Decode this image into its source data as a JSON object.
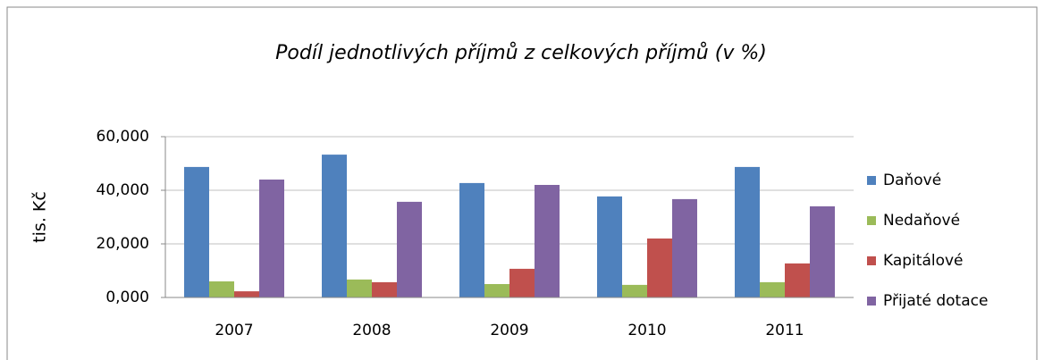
{
  "chart_data": {
    "type": "bar",
    "title": "Podíl jednotlivých příjmů z celkových příjmů (v %)",
    "y_label": "tis. Kč",
    "categories": [
      "2007",
      "2008",
      "2009",
      "2010",
      "2011"
    ],
    "series": [
      {
        "name": "Daňové",
        "color": "#4f81bd",
        "values": [
          48.7,
          53.3,
          42.7,
          37.7,
          48.7
        ]
      },
      {
        "name": "Nedaňové",
        "color": "#9bbb59",
        "values": [
          6,
          6.7,
          5,
          4.7,
          5.7
        ]
      },
      {
        "name": "Kapitálové",
        "color": "#c0504d",
        "values": [
          2.3,
          5.7,
          10.7,
          22,
          12.7
        ]
      },
      {
        "name": "Přijaté dotace",
        "color": "#8064a2",
        "values": [
          44,
          35.7,
          42,
          36.7,
          34
        ]
      }
    ],
    "ylim": [
      0,
      60
    ],
    "yticks": [
      {
        "value": 0,
        "label": "0,000"
      },
      {
        "value": 20,
        "label": "20,000"
      },
      {
        "value": 40,
        "label": "40,000"
      },
      {
        "value": 60,
        "label": "60,000"
      }
    ],
    "grid": true,
    "legend": "right"
  }
}
